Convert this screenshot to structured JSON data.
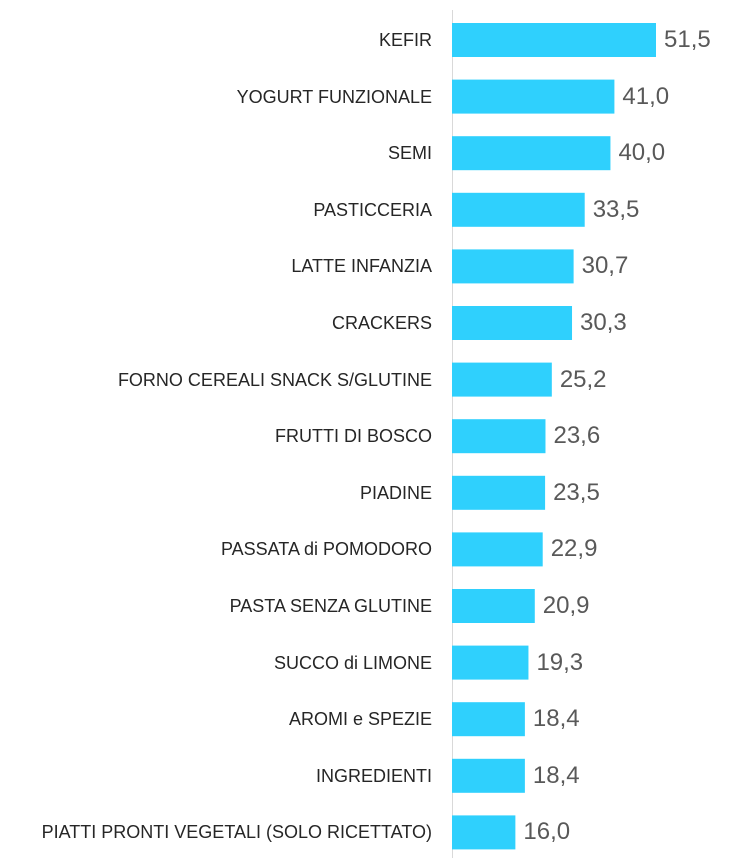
{
  "chart_data": {
    "type": "bar",
    "orientation": "horizontal",
    "categories": [
      "KEFIR",
      "YOGURT FUNZIONALE",
      "SEMI",
      "PASTICCERIA",
      "LATTE INFANZIA",
      "CRACKERS",
      "FORNO CEREALI SNACK S/GLUTINE",
      "FRUTTI DI BOSCO",
      "PIADINE",
      "PASSATA di POMODORO",
      "PASTA SENZA GLUTINE",
      "SUCCO di LIMONE",
      "AROMI e SPEZIE",
      "INGREDIENTI",
      "PIATTI PRONTI VEGETALI (SOLO RICETTATO)"
    ],
    "values": [
      51.5,
      41.0,
      40.0,
      33.5,
      30.7,
      30.3,
      25.2,
      23.6,
      23.5,
      22.9,
      20.9,
      19.3,
      18.4,
      18.4,
      16.0
    ],
    "value_labels": [
      "51,5",
      "41,0",
      "40,0",
      "33,5",
      "30,7",
      "30,3",
      "25,2",
      "23,6",
      "23,5",
      "22,9",
      "20,9",
      "19,3",
      "18,4",
      "18,4",
      "16,0"
    ],
    "color": "#2fd0fd"
  }
}
